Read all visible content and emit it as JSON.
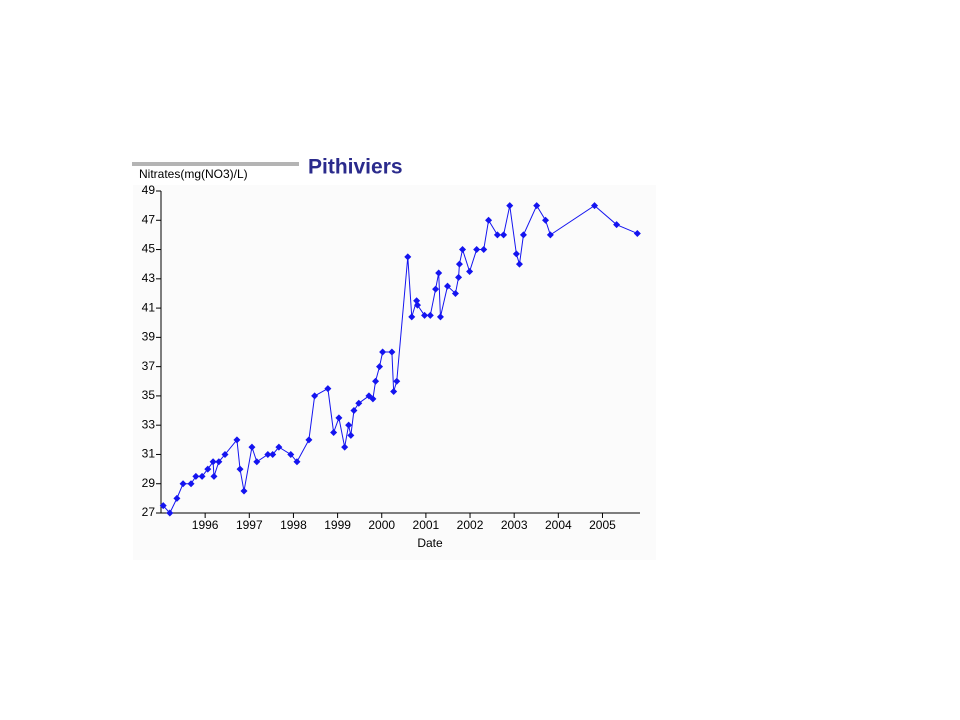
{
  "chart_data": {
    "type": "line",
    "title": "Pithiviers",
    "y_label": "Nitrates(mg(NO3)/L)",
    "x_label": "Date",
    "color": "#1414f0",
    "x": [
      1995.05,
      1995.2,
      1995.36,
      1995.5,
      1995.68,
      1995.79,
      1995.93,
      1996.06,
      1996.18,
      1996.2,
      1996.31,
      1996.45,
      1996.72,
      1996.79,
      1996.88,
      1997.06,
      1997.17,
      1997.42,
      1997.53,
      1997.67,
      1997.94,
      1998.08,
      1998.35,
      1998.48,
      1998.78,
      1998.91,
      1999.03,
      1999.16,
      1999.25,
      1999.3,
      1999.37,
      1999.48,
      1999.71,
      1999.8,
      1999.86,
      1999.95,
      2000.02,
      2000.23,
      2000.27,
      2000.34,
      2000.59,
      2000.68,
      2000.79,
      2000.81,
      2000.97,
      2001.1,
      2001.22,
      2001.29,
      2001.33,
      2001.49,
      2001.67,
      2001.74,
      2001.76,
      2001.83,
      2001.99,
      2002.15,
      2002.31,
      2002.42,
      2002.62,
      2002.76,
      2002.9,
      2003.05,
      2003.12,
      2003.21,
      2003.51,
      2003.71,
      2003.82,
      2004.82,
      2005.32,
      2005.79
    ],
    "values": [
      27.5,
      27,
      28,
      29,
      29,
      29.5,
      29.5,
      30,
      30.5,
      29.5,
      30.5,
      31,
      32,
      30,
      28.5,
      31.5,
      30.5,
      31,
      31,
      31.5,
      31,
      30.5,
      32,
      35,
      35.5,
      32.5,
      33.5,
      31.5,
      33,
      32.3,
      34,
      34.5,
      35,
      34.8,
      36,
      37,
      38,
      38,
      35.3,
      36,
      44.5,
      40.4,
      41.5,
      41.2,
      40.5,
      40.5,
      42.3,
      43.4,
      40.4,
      42.5,
      42,
      43.1,
      44,
      45,
      43.5,
      45,
      45,
      47,
      46,
      46,
      48,
      44.7,
      44,
      46,
      48,
      47,
      46,
      48,
      46.7,
      46.1
    ],
    "xlim": [
      1995,
      2005.85
    ],
    "xticks": [
      1996,
      1997,
      1998,
      1999,
      2000,
      2001,
      2002,
      2003,
      2004,
      2005
    ],
    "ylim": [
      27,
      49
    ],
    "yticks": [
      27,
      29,
      31,
      33,
      35,
      37,
      39,
      41,
      43,
      45,
      47,
      49
    ]
  }
}
